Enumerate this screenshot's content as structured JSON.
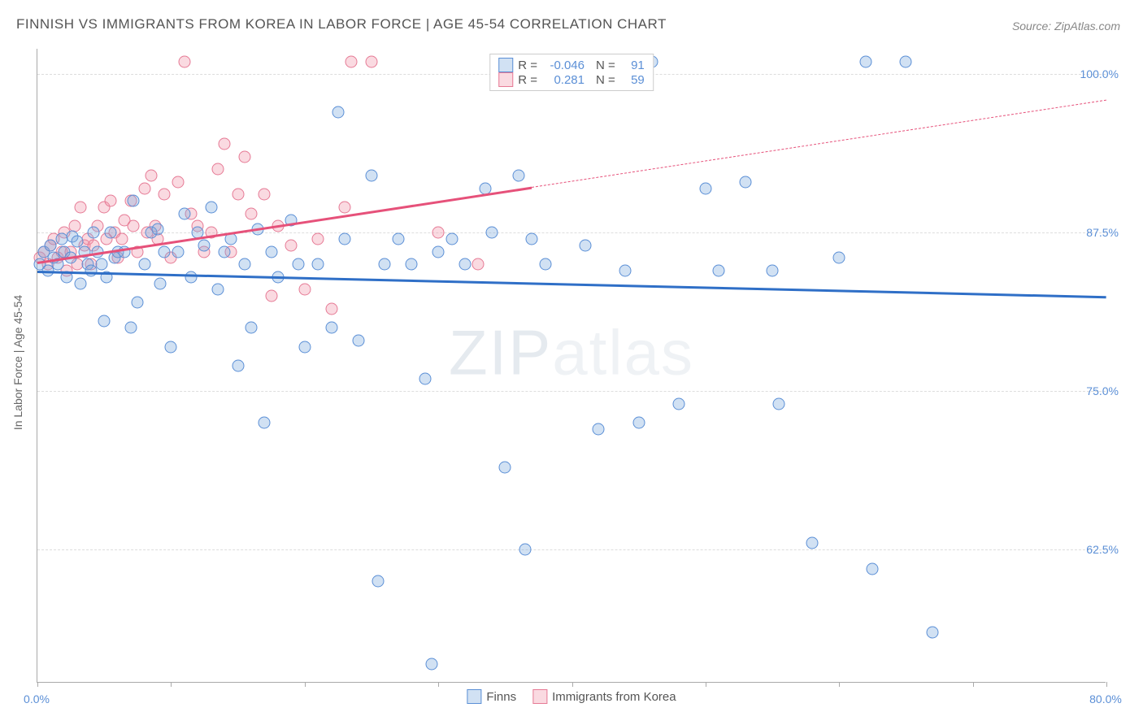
{
  "title": "FINNISH VS IMMIGRANTS FROM KOREA IN LABOR FORCE | AGE 45-54 CORRELATION CHART",
  "source": "Source: ZipAtlas.com",
  "y_axis_title": "In Labor Force | Age 45-54",
  "watermark_a": "ZIP",
  "watermark_b": "atlas",
  "chart": {
    "type": "scatter",
    "xlim": [
      0,
      80
    ],
    "ylim": [
      52,
      102
    ],
    "x_ticks": [
      0,
      10,
      20,
      30,
      40,
      50,
      60,
      70,
      80
    ],
    "x_tick_labels": {
      "0": "0.0%",
      "80": "80.0%"
    },
    "y_ticks": [
      62.5,
      75.0,
      87.5,
      100.0
    ],
    "y_tick_labels": [
      "62.5%",
      "75.0%",
      "87.5%",
      "100.0%"
    ],
    "background_color": "#ffffff",
    "grid_color": "#dddddd",
    "axis_color": "#aaaaaa",
    "tick_label_color": "#5b8fd6",
    "text_color": "#555555",
    "marker_radius": 7.5,
    "marker_stroke_width": 1.2
  },
  "series": {
    "finns": {
      "label": "Finns",
      "fill": "rgba(123,168,222,0.35)",
      "stroke": "#5b8fd6",
      "R": "-0.046",
      "N": "91",
      "trend": {
        "x1": 0,
        "y1": 84.5,
        "x2": 80,
        "y2": 82.5,
        "solid_to_x": 80,
        "color": "#2f6fc7"
      },
      "points": [
        [
          0.2,
          85
        ],
        [
          0.5,
          86
        ],
        [
          0.8,
          84.5
        ],
        [
          1,
          86.5
        ],
        [
          1.2,
          85.5
        ],
        [
          1.5,
          85
        ],
        [
          1.8,
          87
        ],
        [
          2,
          86
        ],
        [
          2.2,
          84
        ],
        [
          2.5,
          85.5
        ],
        [
          2.6,
          87.2
        ],
        [
          3,
          86.8
        ],
        [
          3.2,
          83.5
        ],
        [
          3.5,
          86
        ],
        [
          3.8,
          85
        ],
        [
          4,
          84.5
        ],
        [
          4.2,
          87.5
        ],
        [
          4.5,
          86
        ],
        [
          4.8,
          85
        ],
        [
          5,
          80.5
        ],
        [
          5.2,
          84
        ],
        [
          5.5,
          87.5
        ],
        [
          5.8,
          85.5
        ],
        [
          6,
          86
        ],
        [
          6.5,
          86
        ],
        [
          7,
          80
        ],
        [
          7.2,
          90
        ],
        [
          7.5,
          82
        ],
        [
          8,
          85
        ],
        [
          8.5,
          87.5
        ],
        [
          9,
          87.8
        ],
        [
          9.2,
          83.5
        ],
        [
          9.5,
          86
        ],
        [
          10,
          78.5
        ],
        [
          10.5,
          86
        ],
        [
          11,
          89
        ],
        [
          11.5,
          84
        ],
        [
          12,
          87.5
        ],
        [
          12.5,
          86.5
        ],
        [
          13,
          89.5
        ],
        [
          13.5,
          83
        ],
        [
          14,
          86
        ],
        [
          14.5,
          87
        ],
        [
          15,
          77
        ],
        [
          15.5,
          85
        ],
        [
          16,
          80
        ],
        [
          16.5,
          87.8
        ],
        [
          17,
          72.5
        ],
        [
          17.5,
          86
        ],
        [
          18,
          84
        ],
        [
          19,
          88.5
        ],
        [
          19.5,
          85
        ],
        [
          20,
          78.5
        ],
        [
          21,
          85
        ],
        [
          22,
          80
        ],
        [
          22.5,
          97
        ],
        [
          23,
          87
        ],
        [
          24,
          79
        ],
        [
          25,
          92
        ],
        [
          25.5,
          60
        ],
        [
          26,
          85
        ],
        [
          27,
          87
        ],
        [
          28,
          85
        ],
        [
          29,
          76
        ],
        [
          29.5,
          53.5
        ],
        [
          30,
          86
        ],
        [
          31,
          87
        ],
        [
          32,
          85
        ],
        [
          33.5,
          91
        ],
        [
          34,
          87.5
        ],
        [
          35,
          69
        ],
        [
          36,
          92
        ],
        [
          36.5,
          62.5
        ],
        [
          37,
          87
        ],
        [
          38,
          85
        ],
        [
          40,
          101
        ],
        [
          41,
          86.5
        ],
        [
          42,
          72
        ],
        [
          43,
          101
        ],
        [
          44,
          84.5
        ],
        [
          45,
          72.5
        ],
        [
          46,
          101
        ],
        [
          48,
          74
        ],
        [
          50,
          91
        ],
        [
          51,
          84.5
        ],
        [
          53,
          91.5
        ],
        [
          55,
          84.5
        ],
        [
          55.5,
          74
        ],
        [
          58,
          63
        ],
        [
          60,
          85.5
        ],
        [
          62,
          101
        ],
        [
          62.5,
          61
        ],
        [
          65,
          101
        ],
        [
          67,
          56
        ]
      ]
    },
    "korea": {
      "label": "Immigrants from Korea",
      "fill": "rgba(240,150,170,0.35)",
      "stroke": "#e67a95",
      "R": "0.281",
      "N": "59",
      "trend": {
        "x1": 0,
        "y1": 85.2,
        "x2": 80,
        "y2": 98,
        "solid_to_x": 37,
        "color": "#e6517a"
      },
      "points": [
        [
          0.2,
          85.5
        ],
        [
          0.5,
          86
        ],
        [
          0.8,
          85
        ],
        [
          1,
          86.5
        ],
        [
          1.2,
          87
        ],
        [
          1.5,
          85.5
        ],
        [
          1.8,
          86
        ],
        [
          2,
          87.5
        ],
        [
          2.2,
          84.5
        ],
        [
          2.5,
          86
        ],
        [
          2.8,
          88
        ],
        [
          3,
          85
        ],
        [
          3.2,
          89.5
        ],
        [
          3.5,
          86.5
        ],
        [
          3.8,
          87
        ],
        [
          4,
          85
        ],
        [
          4.2,
          86.5
        ],
        [
          4.5,
          88
        ],
        [
          5,
          89.5
        ],
        [
          5.2,
          87
        ],
        [
          5.5,
          90
        ],
        [
          5.8,
          87.5
        ],
        [
          6,
          85.5
        ],
        [
          6.3,
          87
        ],
        [
          6.5,
          88.5
        ],
        [
          7,
          90
        ],
        [
          7.2,
          88
        ],
        [
          7.5,
          86
        ],
        [
          8,
          91
        ],
        [
          8.2,
          87.5
        ],
        [
          8.5,
          92
        ],
        [
          8.8,
          88
        ],
        [
          9,
          87
        ],
        [
          9.5,
          90.5
        ],
        [
          10,
          85.5
        ],
        [
          10.5,
          91.5
        ],
        [
          11,
          101
        ],
        [
          11.5,
          89
        ],
        [
          12,
          88
        ],
        [
          12.5,
          86
        ],
        [
          13,
          87.5
        ],
        [
          13.5,
          92.5
        ],
        [
          14,
          94.5
        ],
        [
          14.5,
          86
        ],
        [
          15,
          90.5
        ],
        [
          15.5,
          93.5
        ],
        [
          16,
          89
        ],
        [
          17,
          90.5
        ],
        [
          17.5,
          82.5
        ],
        [
          18,
          88
        ],
        [
          19,
          86.5
        ],
        [
          20,
          83
        ],
        [
          21,
          87
        ],
        [
          22,
          81.5
        ],
        [
          23,
          89.5
        ],
        [
          23.5,
          101
        ],
        [
          25,
          101
        ],
        [
          30,
          87.5
        ],
        [
          33,
          85
        ]
      ]
    }
  },
  "legend_top": {
    "r_label": "R =",
    "n_label": "N ="
  }
}
